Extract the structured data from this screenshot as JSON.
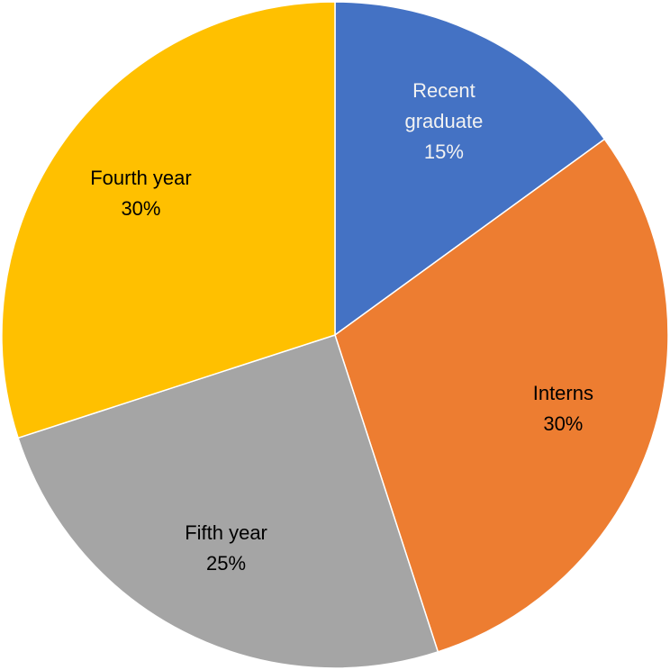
{
  "chart_data": {
    "type": "pie",
    "categories": [
      "Recent graduate",
      "Interns",
      "Fifth year",
      "Fourth year"
    ],
    "values": [
      15,
      30,
      25,
      30
    ],
    "value_labels": [
      "15%",
      "30%",
      "25%",
      "30%"
    ],
    "colors": [
      "#4472c4",
      "#ed7d31",
      "#a5a5a5",
      "#ffc000"
    ],
    "label_colors": [
      "#f2f2f2",
      "#000000",
      "#000000",
      "#000000"
    ]
  }
}
